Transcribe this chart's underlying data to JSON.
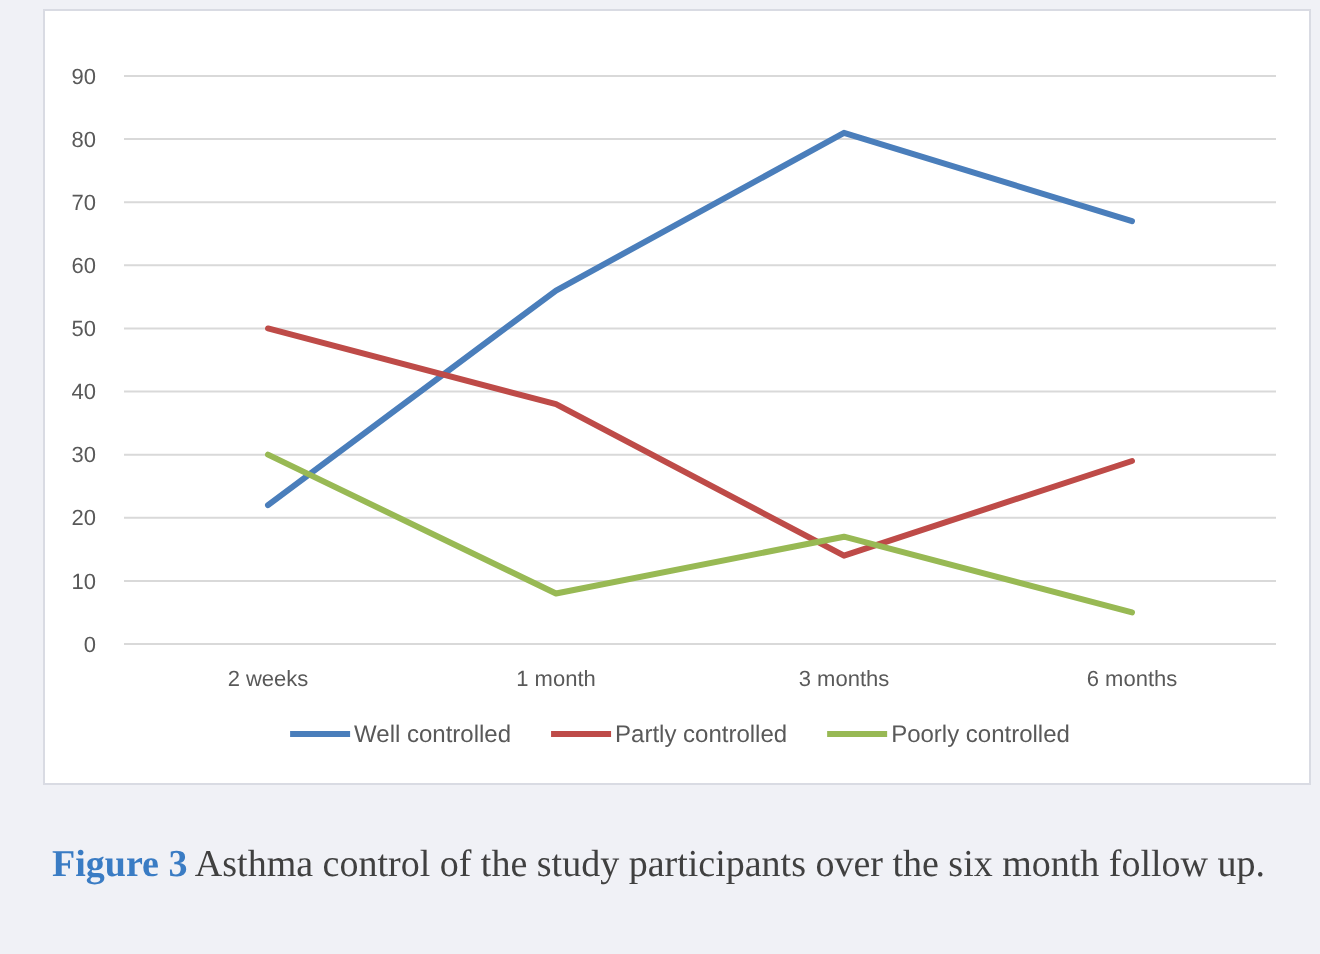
{
  "chart_data": {
    "type": "line",
    "categories": [
      "2 weeks",
      "1 month",
      "3 months",
      "6 months"
    ],
    "series": [
      {
        "name": "Well controlled",
        "color": "#4a7ebb",
        "values": [
          22,
          56,
          81,
          67
        ]
      },
      {
        "name": "Partly controlled",
        "color": "#be4b48",
        "values": [
          50,
          38,
          14,
          29
        ]
      },
      {
        "name": "Poorly controlled",
        "color": "#98b954",
        "values": [
          30,
          8,
          17,
          5
        ]
      }
    ],
    "ylim": [
      0,
      90
    ],
    "yticks": [
      0,
      10,
      20,
      30,
      40,
      50,
      60,
      70,
      80,
      90
    ],
    "grid": "y",
    "legend": "bottom",
    "marker": "none",
    "line_style": "solid",
    "annotations": [
      "Figure 3 Asthma control of the study participants over the six month follow up."
    ]
  }
}
